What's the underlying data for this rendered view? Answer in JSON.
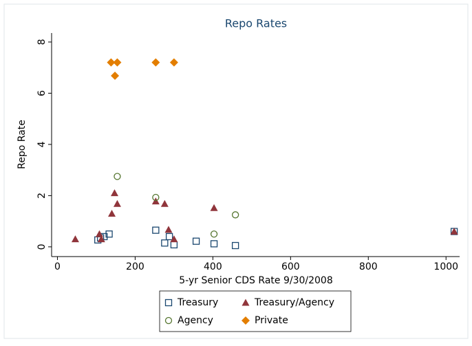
{
  "chart_data": {
    "type": "scatter",
    "title": "Repo Rates",
    "xlabel": "5-yr Senior CDS Rate 9/30/2008",
    "ylabel": "Repo Rate",
    "xlim": [
      -15,
      1035
    ],
    "ylim": [
      -0.38,
      8.35
    ],
    "xticks": [
      0,
      200,
      400,
      600,
      800,
      1000
    ],
    "yticks": [
      0,
      2,
      4,
      6,
      8
    ],
    "legend": "bottom",
    "series": [
      {
        "name": "Treasury",
        "color": "#1a476f",
        "marker": "square",
        "x": [
          104,
          111,
          120,
          133,
          253,
          276,
          288,
          300,
          357,
          403,
          458,
          1021
        ],
        "values": [
          0.27,
          0.35,
          0.4,
          0.5,
          0.65,
          0.15,
          0.4,
          0.08,
          0.22,
          0.12,
          0.05,
          0.6
        ]
      },
      {
        "name": "Treasury/Agency",
        "color": "#90353b",
        "marker": "triangle",
        "x": [
          46,
          108,
          113,
          140,
          147,
          154,
          253,
          276,
          286,
          300,
          403,
          1021
        ],
        "values": [
          0.3,
          0.5,
          0.3,
          1.3,
          2.1,
          1.68,
          1.78,
          1.68,
          0.67,
          0.3,
          1.52,
          0.6
        ]
      },
      {
        "name": "Agency",
        "color": "#55752f",
        "marker": "circle",
        "x": [
          154,
          253,
          403,
          458
        ],
        "values": [
          2.75,
          1.93,
          0.5,
          1.25
        ]
      },
      {
        "name": "Private",
        "color": "#e37e00",
        "marker": "diamond",
        "x": [
          138,
          154,
          148,
          253,
          300
        ],
        "values": [
          7.2,
          7.2,
          6.68,
          7.2,
          7.2
        ]
      }
    ]
  }
}
